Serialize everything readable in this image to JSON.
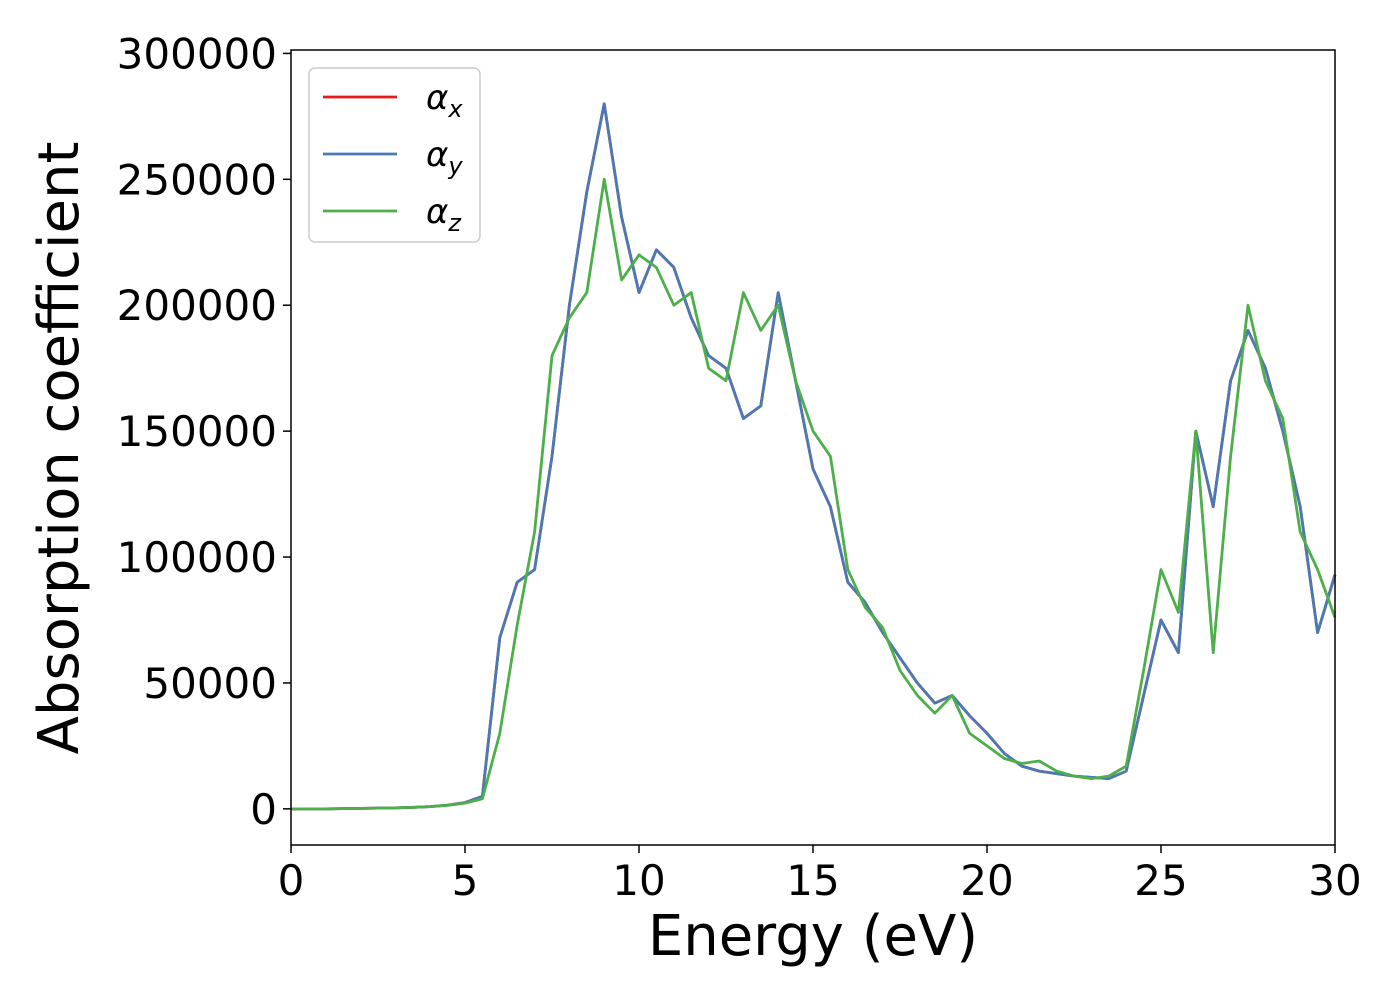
{
  "chart_data": {
    "type": "line",
    "x_label": "Energy (eV)",
    "y_label": "Absorption coefficient",
    "x": [
      0,
      0.5,
      1,
      1.5,
      2,
      2.5,
      3,
      3.5,
      4,
      4.5,
      5,
      5.5,
      6,
      6.5,
      7,
      7.5,
      8,
      8.5,
      9,
      9.5,
      10,
      10.5,
      11,
      11.5,
      12,
      12.5,
      13,
      13.5,
      14,
      14.5,
      15,
      15.5,
      16,
      16.5,
      17,
      17.5,
      18,
      18.5,
      19,
      19.5,
      20,
      20.5,
      21,
      21.5,
      22,
      22.5,
      23,
      23.5,
      24,
      24.5,
      25,
      25.5,
      26,
      26.5,
      27,
      27.5,
      28,
      28.5,
      29,
      29.5,
      30
    ],
    "series": [
      {
        "name": "αx",
        "color": "#e41a1c",
        "values": [
          0,
          0,
          0,
          100,
          200,
          300,
          400,
          600,
          900,
          1500,
          2500,
          5000,
          68000,
          90000,
          95000,
          140000,
          200000,
          245000,
          280000,
          235000,
          205000,
          222000,
          215000,
          195000,
          180000,
          175000,
          155000,
          160000,
          205000,
          170000,
          135000,
          120000,
          90000,
          82000,
          70000,
          60000,
          50000,
          42000,
          45000,
          37000,
          30000,
          22000,
          17000,
          15000,
          14000,
          13000,
          12500,
          12000,
          15000,
          45000,
          75000,
          62000,
          150000,
          120000,
          170000,
          190000,
          175000,
          150000,
          120000,
          70000,
          93000
        ]
      },
      {
        "name": "αy",
        "color": "#4a7ab5",
        "values": [
          0,
          0,
          0,
          100,
          200,
          300,
          400,
          600,
          900,
          1500,
          2500,
          5000,
          68000,
          90000,
          95000,
          140000,
          200000,
          245000,
          280000,
          235000,
          205000,
          222000,
          215000,
          195000,
          180000,
          175000,
          155000,
          160000,
          205000,
          170000,
          135000,
          120000,
          90000,
          82000,
          70000,
          60000,
          50000,
          42000,
          45000,
          37000,
          30000,
          22000,
          17000,
          15000,
          14000,
          13000,
          12500,
          12000,
          15000,
          45000,
          75000,
          62000,
          150000,
          120000,
          170000,
          190000,
          175000,
          150000,
          120000,
          70000,
          93000
        ]
      },
      {
        "name": "αz",
        "color": "#4daf4a",
        "values": [
          0,
          0,
          0,
          100,
          200,
          300,
          400,
          600,
          900,
          1400,
          2300,
          4000,
          30000,
          73000,
          110000,
          180000,
          195000,
          205000,
          250000,
          210000,
          220000,
          215000,
          200000,
          205000,
          175000,
          170000,
          205000,
          190000,
          200000,
          170000,
          150000,
          140000,
          95000,
          80000,
          72000,
          55000,
          45000,
          38000,
          45000,
          30000,
          25000,
          20000,
          18000,
          19000,
          15000,
          13000,
          12000,
          13000,
          17000,
          55000,
          95000,
          78000,
          150000,
          62000,
          140000,
          200000,
          170000,
          155000,
          110000,
          95000,
          76000
        ]
      }
    ],
    "xlim": [
      0,
      30
    ],
    "xticks": [
      0,
      5,
      10,
      15,
      20,
      25,
      30
    ],
    "ylim": [
      -14350,
      301350
    ],
    "yticks": [
      0,
      50000,
      100000,
      150000,
      200000,
      250000,
      300000
    ],
    "grid": false,
    "legend": "upper left"
  }
}
